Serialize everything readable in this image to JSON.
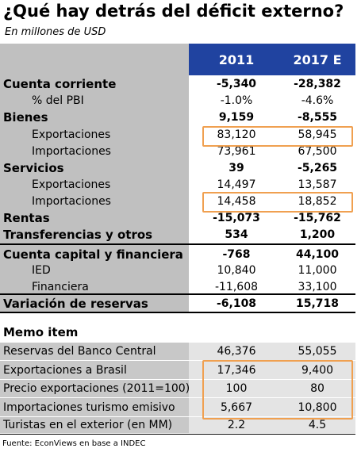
{
  "title": "¿Qué hay detrás del déficit externo?",
  "subtitle": "En millones de USD",
  "table": {
    "columns": [
      "2011",
      "2017 E"
    ],
    "rows": [
      {
        "label": "Cuenta corriente",
        "values": [
          "-5,340",
          "-28,382"
        ]
      },
      {
        "label": "% del PBI",
        "values": [
          "-1.0%",
          "-4.6%"
        ]
      },
      {
        "label": "Bienes",
        "values": [
          "9,159",
          "-8,555"
        ]
      },
      {
        "label": "Exportaciones",
        "values": [
          "83,120",
          "58,945"
        ]
      },
      {
        "label": "Importaciones",
        "values": [
          "73,961",
          "67,500"
        ]
      },
      {
        "label": "Servicios",
        "values": [
          "39",
          "-5,265"
        ]
      },
      {
        "label": "Exportaciones",
        "values": [
          "14,497",
          "13,587"
        ]
      },
      {
        "label": "Importaciones",
        "values": [
          "14,458",
          "18,852"
        ]
      },
      {
        "label": "Rentas",
        "values": [
          "-15,073",
          "-15,762"
        ]
      },
      {
        "label": "Transferencias y otros",
        "values": [
          "534",
          "1,200"
        ]
      },
      {
        "label": "Cuenta capital y financiera",
        "values": [
          "-768",
          "44,100"
        ]
      },
      {
        "label": "IED",
        "values": [
          "10,840",
          "11,000"
        ]
      },
      {
        "label": "Financiera",
        "values": [
          "-11,608",
          "33,100"
        ]
      },
      {
        "label": "Variación de reservas",
        "values": [
          "-6,108",
          "15,718"
        ]
      }
    ]
  },
  "memo": {
    "title": "Memo item",
    "rows": [
      {
        "label": "Reservas del Banco Central",
        "values": [
          "46,376",
          "55,055"
        ]
      },
      {
        "label": "Exportaciones a Brasil",
        "values": [
          "17,346",
          "9,400"
        ]
      },
      {
        "label": "Precio exportaciones (2011=100)",
        "values": [
          "100",
          "80"
        ]
      },
      {
        "label": "Importaciones turismo emisivo",
        "values": [
          "5,667",
          "10,800"
        ]
      },
      {
        "label": "Turistas en el exterior (en MM)",
        "values": [
          "2.2",
          "4.5"
        ]
      }
    ]
  },
  "source": "Fuente: EconViews en base a INDEC"
}
